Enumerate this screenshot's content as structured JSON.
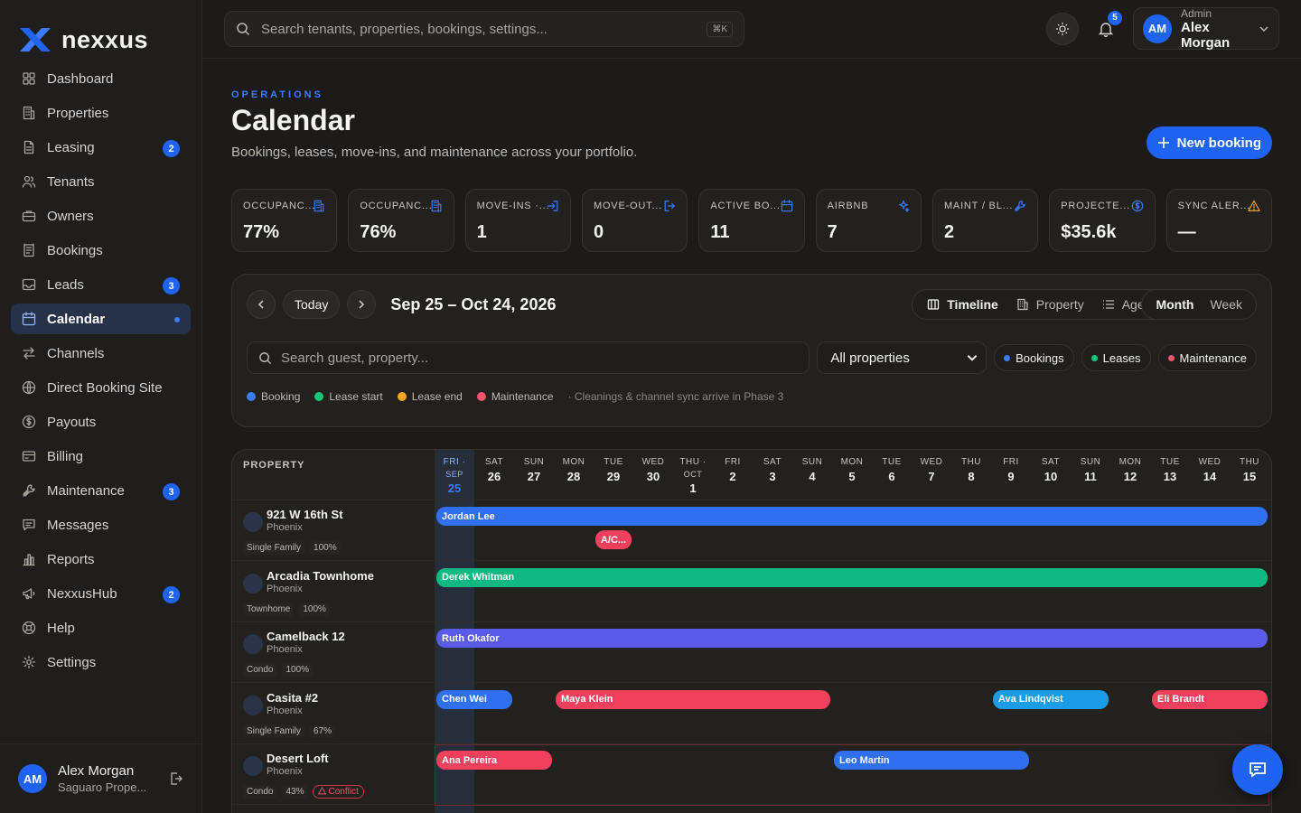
{
  "brand": {
    "name": "nexxus"
  },
  "sidebar": {
    "items": [
      {
        "label": "Dashboard",
        "icon": "grid-icon"
      },
      {
        "label": "Properties",
        "icon": "building-icon"
      },
      {
        "label": "Leasing",
        "icon": "document-icon",
        "badge": "2"
      },
      {
        "label": "Tenants",
        "icon": "users-icon"
      },
      {
        "label": "Owners",
        "icon": "briefcase-icon"
      },
      {
        "label": "Bookings",
        "icon": "bookings-icon"
      },
      {
        "label": "Leads",
        "icon": "inbox-icon",
        "badge": "3"
      },
      {
        "label": "Calendar",
        "icon": "calendar-icon",
        "active": true
      },
      {
        "label": "Channels",
        "icon": "arrows-icon"
      },
      {
        "label": "Direct Booking Site",
        "icon": "globe-icon"
      },
      {
        "label": "Payouts",
        "icon": "dollar-icon"
      },
      {
        "label": "Billing",
        "icon": "credit-card-icon"
      },
      {
        "label": "Maintenance",
        "icon": "wrench-icon",
        "badge": "3"
      },
      {
        "label": "Messages",
        "icon": "chat-icon"
      },
      {
        "label": "Reports",
        "icon": "bar-chart-icon"
      },
      {
        "label": "NexxusHub",
        "icon": "megaphone-icon",
        "badge": "2"
      },
      {
        "label": "Help",
        "icon": "help-icon"
      },
      {
        "label": "Settings",
        "icon": "gear-icon"
      }
    ],
    "user": {
      "initials": "AM",
      "name": "Alex Morgan",
      "org": "Saguaro Prope..."
    }
  },
  "topbar": {
    "search_placeholder": "Search tenants, properties, bookings, settings...",
    "shortcut": "⌘K",
    "notifications": "5",
    "user": {
      "initials": "AM",
      "role": "Admin",
      "name": "Alex Morgan"
    }
  },
  "page": {
    "eyebrow": "OPERATIONS",
    "title": "Calendar",
    "subtitle": "Bookings, leases, move-ins, and maintenance across your portfolio.",
    "new_button": "New booking"
  },
  "stats": [
    {
      "label": "OCCUPANC...",
      "value": "77%",
      "icon": "building-icon"
    },
    {
      "label": "OCCUPANC...",
      "value": "76%",
      "icon": "building-icon"
    },
    {
      "label": "MOVE-INS ·...",
      "value": "1",
      "icon": "login-icon"
    },
    {
      "label": "MOVE-OUT...",
      "value": "0",
      "icon": "logout-icon"
    },
    {
      "label": "ACTIVE BO...",
      "value": "11",
      "icon": "calendar-icon"
    },
    {
      "label": "AIRBNB",
      "value": "7",
      "icon": "sparkle-icon"
    },
    {
      "label": "MAINT / BL...",
      "value": "2",
      "icon": "wrench-icon"
    },
    {
      "label": "PROJECTE...",
      "value": "$35.6k",
      "icon": "dollar-icon"
    },
    {
      "label": "SYNC ALER...",
      "value": "—",
      "icon": "warning-icon"
    }
  ],
  "calendar": {
    "today_label": "Today",
    "range": "Sep 25 – Oct 24, 2026",
    "views": [
      "Timeline",
      "Property",
      "Agenda"
    ],
    "modes": [
      "Month",
      "Week"
    ],
    "search_placeholder": "Search guest, property...",
    "property_filter": "All properties",
    "filters": [
      {
        "label": "Bookings",
        "color": "#3b7bff"
      },
      {
        "label": "Leases",
        "color": "#17c47c"
      },
      {
        "label": "Maintenance",
        "color": "#f0536b"
      }
    ],
    "legend": [
      {
        "label": "Booking",
        "color": "#3b7bff"
      },
      {
        "label": "Lease start",
        "color": "#17c47c"
      },
      {
        "label": "Lease end",
        "color": "#f5a524"
      },
      {
        "label": "Maintenance",
        "color": "#f0536b"
      }
    ],
    "legend_note": "· Cleanings & channel sync arrive in Phase 3",
    "property_header": "PROPERTY",
    "days": [
      {
        "dow": "FRI ·",
        "month": "SEP",
        "num": "25",
        "today": true
      },
      {
        "dow": "SAT",
        "num": "26"
      },
      {
        "dow": "SUN",
        "num": "27"
      },
      {
        "dow": "MON",
        "num": "28"
      },
      {
        "dow": "TUE",
        "num": "29"
      },
      {
        "dow": "WED",
        "num": "30"
      },
      {
        "dow": "THU ·",
        "month": "OCT",
        "num": "1"
      },
      {
        "dow": "FRI",
        "num": "2"
      },
      {
        "dow": "SAT",
        "num": "3"
      },
      {
        "dow": "SUN",
        "num": "4"
      },
      {
        "dow": "MON",
        "num": "5"
      },
      {
        "dow": "TUE",
        "num": "6"
      },
      {
        "dow": "WED",
        "num": "7"
      },
      {
        "dow": "THU",
        "num": "8"
      },
      {
        "dow": "FRI",
        "num": "9"
      },
      {
        "dow": "SAT",
        "num": "10"
      },
      {
        "dow": "SUN",
        "num": "11"
      },
      {
        "dow": "MON",
        "num": "12"
      },
      {
        "dow": "TUE",
        "num": "13"
      },
      {
        "dow": "WED",
        "num": "14"
      },
      {
        "dow": "THU",
        "num": "15"
      }
    ],
    "properties": [
      {
        "name": "921 W 16th St",
        "city": "Phoenix",
        "type": "Single Family",
        "occupancy": "100%",
        "events": [
          {
            "label": "Jordan Lee",
            "start": 0,
            "end": 21,
            "lane": 0,
            "color": "#2f6ff0"
          },
          {
            "label": "A/C...",
            "start": 4,
            "end": 5,
            "lane": 1,
            "color": "#f0405e"
          }
        ]
      },
      {
        "name": "Arcadia Townhome",
        "city": "Phoenix",
        "type": "Townhome",
        "occupancy": "100%",
        "events": [
          {
            "label": "Derek Whitman",
            "start": 0,
            "end": 21,
            "lane": 0,
            "color": "#10b981"
          }
        ]
      },
      {
        "name": "Camelback 12",
        "city": "Phoenix",
        "type": "Condo",
        "occupancy": "100%",
        "events": [
          {
            "label": "Ruth Okafor",
            "start": 0,
            "end": 21,
            "lane": 0,
            "color": "#5b5bea"
          }
        ]
      },
      {
        "name": "Casita #2",
        "city": "Phoenix",
        "type": "Single Family",
        "occupancy": "67%",
        "events": [
          {
            "label": "Chen Wei",
            "start": 0,
            "end": 2,
            "lane": 0,
            "color": "#2f6ff0"
          },
          {
            "label": "Maya Klein",
            "start": 3,
            "end": 10,
            "lane": 0,
            "color": "#f0405e"
          },
          {
            "label": "Ava Lindqvist",
            "start": 14,
            "end": 17,
            "lane": 0,
            "color": "#1c9be6"
          },
          {
            "label": "Eli Brandt",
            "start": 18,
            "end": 21,
            "lane": 0,
            "color": "#f0405e"
          }
        ]
      },
      {
        "name": "Desert Loft",
        "city": "Phoenix",
        "type": "Condo",
        "occupancy": "43%",
        "conflict": "Conflict",
        "events": [
          {
            "label": "Ana Pereira",
            "start": 0,
            "end": 3,
            "lane": 0,
            "color": "#f0405e"
          },
          {
            "label": "Leo Martin",
            "start": 10,
            "end": 15,
            "lane": 0,
            "color": "#2f6ff0"
          }
        ]
      }
    ]
  }
}
